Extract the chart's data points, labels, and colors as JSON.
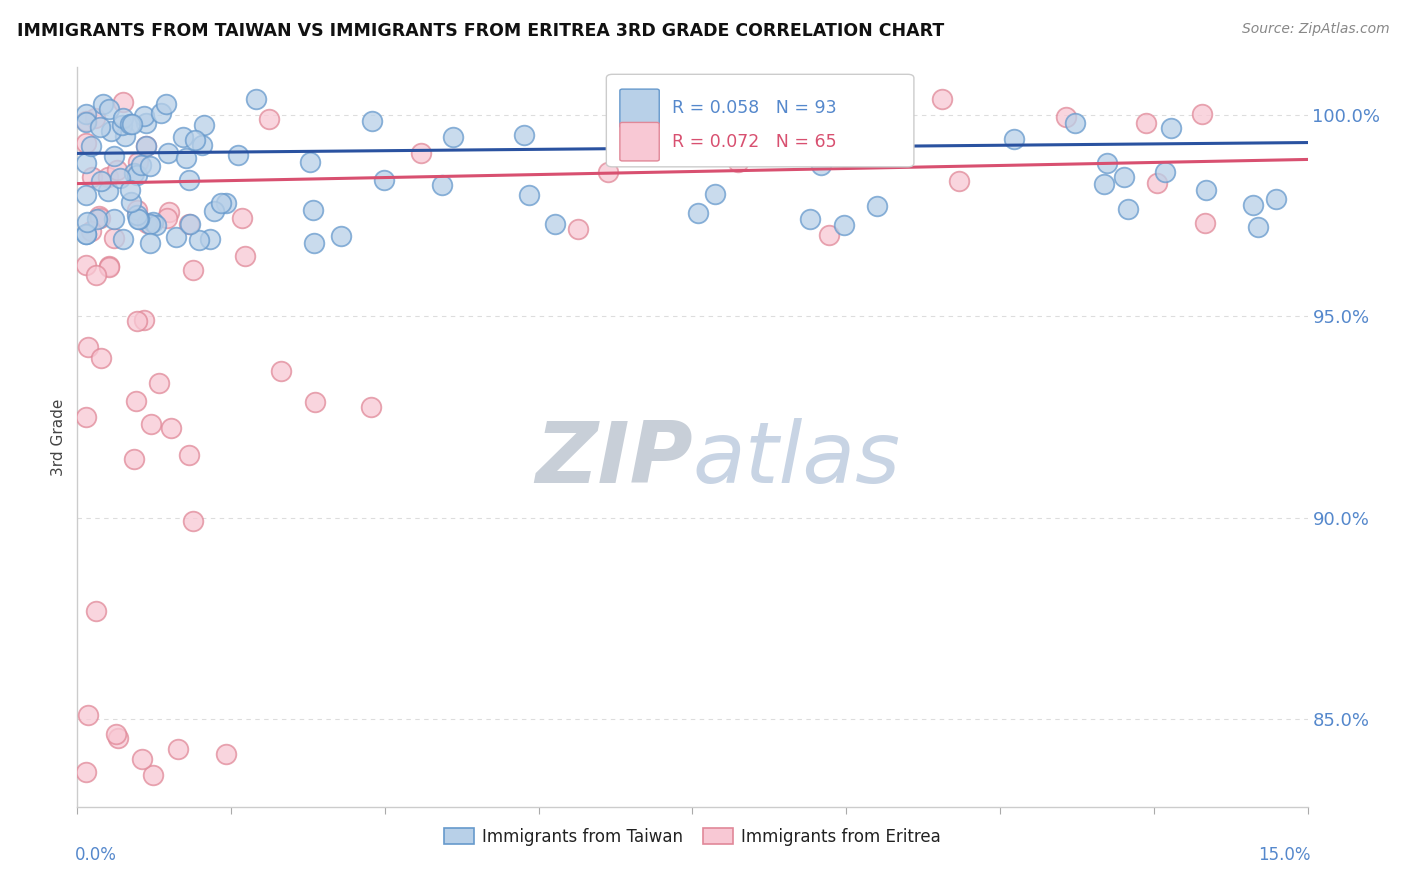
{
  "title": "IMMIGRANTS FROM TAIWAN VS IMMIGRANTS FROM ERITREA 3RD GRADE CORRELATION CHART",
  "source": "Source: ZipAtlas.com",
  "ylabel": "3rd Grade",
  "xmin": 0.0,
  "xmax": 0.15,
  "ymin": 0.828,
  "ymax": 1.012,
  "yticks": [
    0.85,
    0.9,
    0.95,
    1.0
  ],
  "ytick_labels": [
    "85.0%",
    "90.0%",
    "95.0%",
    "100.0%"
  ],
  "taiwan_R": 0.058,
  "taiwan_N": 93,
  "eritrea_R": 0.072,
  "eritrea_N": 65,
  "taiwan_color": "#b8d0e8",
  "taiwan_edge": "#6699cc",
  "eritrea_color": "#f8c8d4",
  "eritrea_edge": "#e08898",
  "trend_taiwan_color": "#2a52a0",
  "trend_eritrea_color": "#d85070",
  "tick_label_color": "#5588cc",
  "watermark_zip_color": "#c8d4e4",
  "watermark_atlas_color": "#c8d4e4",
  "background_color": "#ffffff",
  "legend_border_color": "#cccccc",
  "grid_color": "#dddddd",
  "spine_color": "#cccccc"
}
